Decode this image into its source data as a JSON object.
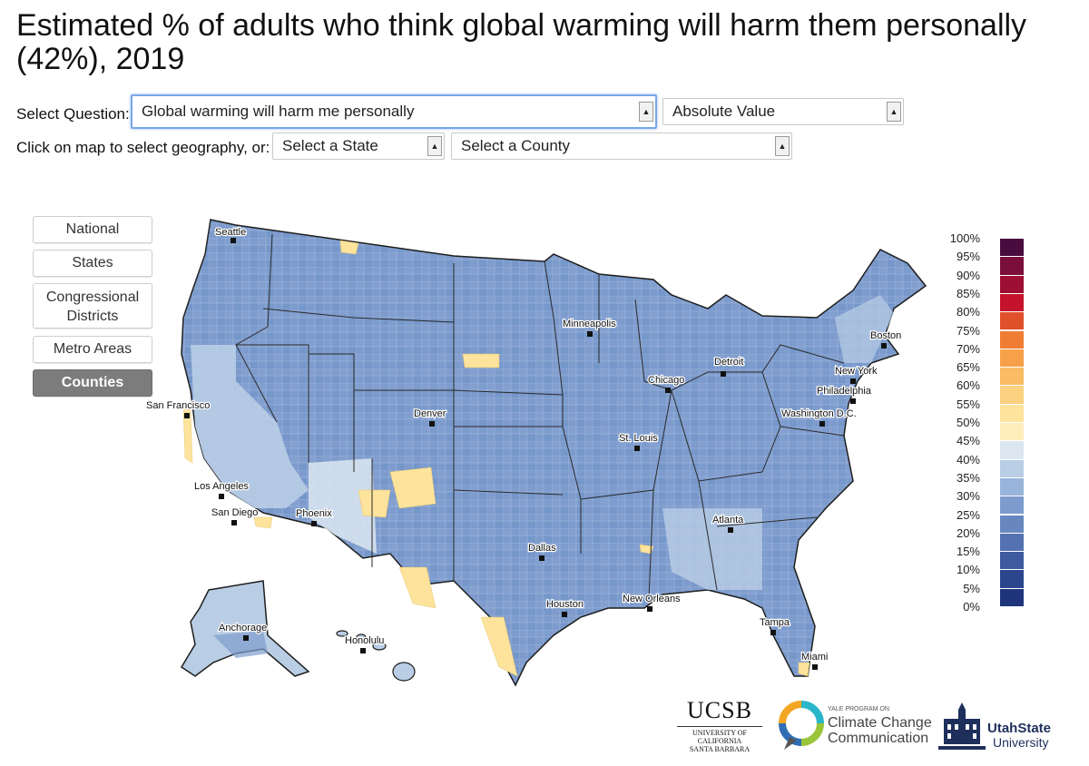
{
  "title": "Estimated % of adults who think global warming will harm them personally (42%), 2019",
  "controls": {
    "question_label": "Select Question:",
    "question_value": "Global warming will harm me personally",
    "mode_value": "Absolute Value",
    "geo_label": "Click on map to select geography, or:",
    "state_value": "Select a State",
    "county_value": "Select a County"
  },
  "geo_buttons": [
    {
      "label": "National",
      "active": false
    },
    {
      "label": "States",
      "active": false
    },
    {
      "label": "Congressional Districts",
      "active": false
    },
    {
      "label": "Metro Areas",
      "active": false
    },
    {
      "label": "Counties",
      "active": true
    }
  ],
  "cities": [
    {
      "name": "Seattle"
    },
    {
      "name": "San Francisco"
    },
    {
      "name": "Los Angeles"
    },
    {
      "name": "San Diego"
    },
    {
      "name": "Phoenix"
    },
    {
      "name": "Denver"
    },
    {
      "name": "Minneapolis"
    },
    {
      "name": "Chicago"
    },
    {
      "name": "Detroit"
    },
    {
      "name": "St. Louis"
    },
    {
      "name": "Dallas"
    },
    {
      "name": "Houston"
    },
    {
      "name": "New Orleans"
    },
    {
      "name": "Atlanta"
    },
    {
      "name": "Tampa"
    },
    {
      "name": "Miami"
    },
    {
      "name": "Washington D.C."
    },
    {
      "name": "Philadelphia"
    },
    {
      "name": "New York"
    },
    {
      "name": "Boston"
    },
    {
      "name": "Anchorage"
    },
    {
      "name": "Honolulu"
    }
  ],
  "legend": {
    "labels": [
      "100%",
      "95%",
      "90%",
      "85%",
      "80%",
      "75%",
      "70%",
      "65%",
      "60%",
      "55%",
      "50%",
      "45%",
      "40%",
      "35%",
      "30%",
      "25%",
      "20%",
      "15%",
      "10%",
      "5%",
      "0%"
    ],
    "colors": [
      "#4a0c3f",
      "#7a0f3a",
      "#9e0f33",
      "#c4132b",
      "#e0502a",
      "#ef7d33",
      "#f6a04a",
      "#f9bb63",
      "#fbd07f",
      "#fde39c",
      "#fdeebc",
      "#dce6f1",
      "#b9cde5",
      "#98b4da",
      "#7d9ccd",
      "#6887bf",
      "#5472b1",
      "#3e5ba0",
      "#2c468e",
      "#1e357c",
      "#122567"
    ],
    "divider_after_index": 10
  },
  "colors": {
    "map_base": "#7d9ccd",
    "map_light": "#b9cde5",
    "map_lighter": "#dce6f1",
    "map_yellow": "#fde39c",
    "map_dark": "#6887bf"
  },
  "logos": {
    "ucsb_name": "UCSB",
    "ucsb_sub1": "UNIVERSITY OF CALIFORNIA",
    "ucsb_sub2": "SANTA BARBARA",
    "yale_small": "YALE PROGRAM ON",
    "yale_line1": "Climate Change",
    "yale_line2": "Communication",
    "usu_line1": "UtahState",
    "usu_line2": "University"
  }
}
